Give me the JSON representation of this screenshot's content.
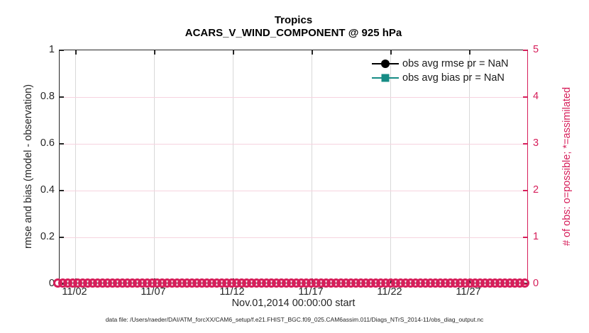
{
  "figure": {
    "title_line1": "Tropics",
    "title_line2": "ACARS_V_WIND_COMPONENT @ 925 hPa",
    "xlabel": "Nov.01,2014 00:00:00 start",
    "caption": "data file: /Users/raeder/DAI/ATM_forcXX/CAM6_setup/f.e21.FHIST_BGC.f09_025.CAM6assim.011/Diags_NTrS_2014-11/obs_diag_output.nc"
  },
  "colors": {
    "axis_black": "#262626",
    "obs_count_pink": "#D61E5A",
    "bias_teal": "#168C85",
    "rmse_black": "#000000",
    "grid_gray": "#D8D8D8",
    "grid_pink": "#F6D3DF"
  },
  "left_axis": {
    "label": "rmse and bias (model - observation)",
    "tick_labels": [
      "1",
      "0.8",
      "0.6",
      "0.4",
      "0.2",
      "0"
    ],
    "range": [
      0,
      1
    ]
  },
  "right_axis": {
    "label": "# of obs: o=possible; *=assimilated",
    "tick_labels": [
      "5",
      "4",
      "3",
      "2",
      "1",
      "0"
    ],
    "range": [
      0,
      5
    ]
  },
  "x_axis": {
    "tick_labels": [
      "11/02",
      "11/07",
      "11/12",
      "11/17",
      "11/22",
      "11/27"
    ]
  },
  "legend": {
    "items": [
      {
        "label": "obs avg rmse pr = NaN",
        "marker": "circle",
        "color": "#000000"
      },
      {
        "label": "obs avg bias pr = NaN",
        "marker": "square",
        "color": "#168C85"
      }
    ]
  },
  "chart_data": {
    "type": "line",
    "title": "Tropics",
    "subtitle": "ACARS_V_WIND_COMPONENT @ 925 hPa",
    "xlabel": "Nov.01,2014 00:00:00 start",
    "x_tick_labels": [
      "11/02",
      "11/07",
      "11/12",
      "11/17",
      "11/22",
      "11/27"
    ],
    "x_range": [
      "2014-11-01 00:00:00",
      "2014-12-01 00:00:00"
    ],
    "left_ylabel": "rmse and bias (model - observation)",
    "left_ylim": [
      0,
      1
    ],
    "right_ylabel": "# of obs: o=possible; *=assimilated",
    "right_ylim": [
      0,
      5
    ],
    "grid": true,
    "legend_position": "top-right-inside",
    "series": [
      {
        "name": "obs avg rmse",
        "axis": "left",
        "color": "#000000",
        "marker": "circle",
        "values": "NaN (no data plotted)"
      },
      {
        "name": "obs avg bias",
        "axis": "left",
        "color": "#168C85",
        "marker": "square",
        "values": "NaN (no data plotted)"
      },
      {
        "name": "# of obs possible",
        "axis": "right",
        "color": "#D61E5A",
        "marker": "o",
        "constant_value": 0,
        "note": "dense overlapping circle markers at y=0 spanning the full date range"
      },
      {
        "name": "# of obs assimilated",
        "axis": "right",
        "color": "#D61E5A",
        "marker": "*",
        "constant_value": 0,
        "note": "overlaps the possible markers at y=0"
      }
    ]
  }
}
